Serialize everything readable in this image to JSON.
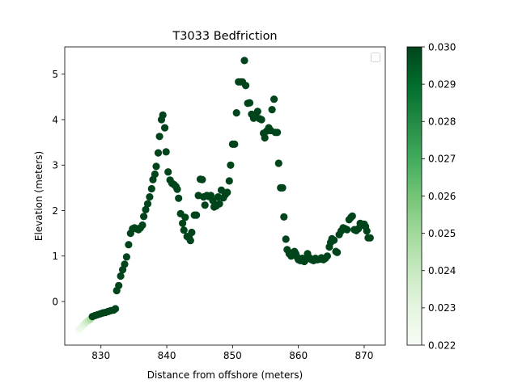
{
  "chart_data": {
    "type": "scatter",
    "title": "T3033 Bedfriction",
    "xlabel": "Distance from offshore (meters)",
    "ylabel": "Elevation (meters)",
    "xlim": [
      824.5,
      873.2
    ],
    "ylim": [
      -0.96,
      5.6
    ],
    "xticks": [
      830,
      840,
      850,
      860,
      870
    ],
    "yticks": [
      0,
      1,
      2,
      3,
      4,
      5
    ],
    "grid": false,
    "legend": "top-right, empty",
    "colormap": "Greens",
    "colorbar": {
      "min": 0.022,
      "max": 0.03,
      "ticks": [
        "0.022",
        "0.023",
        "0.024",
        "0.025",
        "0.026",
        "0.027",
        "0.028",
        "0.029",
        "0.030"
      ]
    },
    "points": [
      [
        826.6,
        -0.62,
        0.0222
      ],
      [
        826.9,
        -0.58,
        0.0225
      ],
      [
        827.2,
        -0.53,
        0.0228
      ],
      [
        827.5,
        -0.49,
        0.0232
      ],
      [
        827.8,
        -0.45,
        0.0236
      ],
      [
        828.1,
        -0.42,
        0.024
      ],
      [
        828.4,
        -0.39,
        0.0247
      ],
      [
        828.7,
        -0.33,
        0.03
      ],
      [
        829.1,
        -0.31,
        0.03
      ],
      [
        829.5,
        -0.29,
        0.03
      ],
      [
        829.9,
        -0.27,
        0.03
      ],
      [
        830.3,
        -0.25,
        0.03
      ],
      [
        830.7,
        -0.24,
        0.03
      ],
      [
        831.1,
        -0.22,
        0.03
      ],
      [
        831.5,
        -0.2,
        0.03
      ],
      [
        831.9,
        -0.19,
        0.03
      ],
      [
        832.2,
        -0.16,
        0.03
      ],
      [
        832.4,
        0.24,
        0.03
      ],
      [
        832.7,
        0.35,
        0.03
      ],
      [
        833.0,
        0.56,
        0.03
      ],
      [
        833.3,
        0.7,
        0.03
      ],
      [
        833.6,
        0.82,
        0.03
      ],
      [
        833.9,
        0.98,
        0.03
      ],
      [
        834.2,
        1.25,
        0.03
      ],
      [
        834.5,
        1.5,
        0.03
      ],
      [
        834.8,
        1.6,
        0.03
      ],
      [
        835.1,
        1.62,
        0.03
      ],
      [
        835.4,
        1.6,
        0.03
      ],
      [
        835.7,
        1.58,
        0.03
      ],
      [
        836.0,
        1.62,
        0.03
      ],
      [
        836.3,
        1.68,
        0.03
      ],
      [
        836.5,
        1.87,
        0.03
      ],
      [
        836.8,
        2.02,
        0.03
      ],
      [
        837.1,
        2.15,
        0.03
      ],
      [
        837.4,
        2.3,
        0.03
      ],
      [
        837.7,
        2.48,
        0.03
      ],
      [
        837.9,
        2.68,
        0.03
      ],
      [
        838.2,
        2.8,
        0.03
      ],
      [
        838.4,
        2.97,
        0.03
      ],
      [
        838.7,
        3.27,
        0.03
      ],
      [
        838.9,
        3.63,
        0.03
      ],
      [
        839.2,
        4.0,
        0.03
      ],
      [
        839.4,
        4.1,
        0.03
      ],
      [
        839.7,
        3.82,
        0.03
      ],
      [
        839.9,
        3.29,
        0.03
      ],
      [
        840.2,
        2.85,
        0.03
      ],
      [
        840.5,
        2.67,
        0.03
      ],
      [
        840.8,
        2.6,
        0.03
      ],
      [
        841.1,
        2.57,
        0.03
      ],
      [
        841.4,
        2.53,
        0.03
      ],
      [
        841.6,
        2.47,
        0.03
      ],
      [
        841.8,
        2.27,
        0.03
      ],
      [
        842.1,
        1.93,
        0.03
      ],
      [
        842.4,
        1.72,
        0.03
      ],
      [
        842.6,
        1.57,
        0.03
      ],
      [
        842.8,
        1.85,
        0.03
      ],
      [
        843.1,
        1.43,
        0.03
      ],
      [
        843.4,
        1.4,
        0.03
      ],
      [
        843.6,
        1.34,
        0.03
      ],
      [
        843.8,
        1.52,
        0.03
      ],
      [
        844.2,
        1.9,
        0.03
      ],
      [
        844.5,
        1.9,
        0.03
      ],
      [
        844.8,
        2.33,
        0.03
      ],
      [
        845.1,
        2.69,
        0.03
      ],
      [
        845.4,
        2.68,
        0.03
      ],
      [
        845.6,
        2.3,
        0.03
      ],
      [
        845.8,
        2.12,
        0.03
      ],
      [
        846.1,
        2.33,
        0.03
      ],
      [
        846.4,
        2.31,
        0.03
      ],
      [
        846.7,
        2.33,
        0.03
      ],
      [
        847.0,
        2.22,
        0.03
      ],
      [
        847.2,
        2.08,
        0.03
      ],
      [
        847.5,
        2.1,
        0.03
      ],
      [
        847.8,
        2.3,
        0.03
      ],
      [
        848.0,
        2.15,
        0.03
      ],
      [
        848.3,
        2.45,
        0.03
      ],
      [
        848.6,
        2.28,
        0.03
      ],
      [
        848.9,
        2.35,
        0.03
      ],
      [
        849.2,
        2.4,
        0.03
      ],
      [
        849.5,
        2.65,
        0.03
      ],
      [
        849.7,
        3.0,
        0.03
      ],
      [
        850.0,
        3.46,
        0.03
      ],
      [
        850.3,
        3.46,
        0.03
      ],
      [
        850.6,
        4.15,
        0.03
      ],
      [
        850.9,
        4.83,
        0.03
      ],
      [
        851.2,
        4.83,
        0.03
      ],
      [
        851.5,
        4.83,
        0.03
      ],
      [
        851.8,
        5.3,
        0.03
      ],
      [
        852.0,
        4.75,
        0.03
      ],
      [
        852.3,
        4.36,
        0.03
      ],
      [
        852.6,
        4.37,
        0.03
      ],
      [
        852.9,
        4.12,
        0.03
      ],
      [
        853.2,
        4.03,
        0.03
      ],
      [
        853.5,
        4.08,
        0.03
      ],
      [
        853.8,
        4.18,
        0.03
      ],
      [
        854.1,
        4.02,
        0.03
      ],
      [
        854.4,
        4.0,
        0.03
      ],
      [
        854.7,
        3.7,
        0.03
      ],
      [
        854.9,
        3.6,
        0.03
      ],
      [
        855.2,
        3.75,
        0.03
      ],
      [
        855.5,
        3.82,
        0.03
      ],
      [
        855.8,
        3.76,
        0.03
      ],
      [
        856.0,
        4.22,
        0.03
      ],
      [
        856.3,
        4.45,
        0.03
      ],
      [
        856.5,
        3.72,
        0.03
      ],
      [
        856.8,
        3.72,
        0.03
      ],
      [
        857.0,
        3.04,
        0.03
      ],
      [
        857.3,
        2.5,
        0.03
      ],
      [
        857.6,
        2.5,
        0.03
      ],
      [
        857.8,
        1.86,
        0.03
      ],
      [
        858.1,
        1.37,
        0.03
      ],
      [
        858.3,
        1.14,
        0.03
      ],
      [
        858.6,
        1.05,
        0.03
      ],
      [
        858.9,
        1.0,
        0.03
      ],
      [
        859.1,
        1.07,
        0.03
      ],
      [
        859.4,
        1.1,
        0.03
      ],
      [
        859.6,
        1.05,
        0.03
      ],
      [
        859.8,
        0.98,
        0.03
      ],
      [
        860.0,
        0.92,
        0.03
      ],
      [
        860.3,
        0.9,
        0.03
      ],
      [
        860.6,
        0.95,
        0.03
      ],
      [
        860.9,
        0.88,
        0.03
      ],
      [
        861.1,
        0.92,
        0.03
      ],
      [
        861.4,
        1.05,
        0.03
      ],
      [
        861.7,
        0.96,
        0.03
      ],
      [
        862.0,
        0.92,
        0.03
      ],
      [
        862.3,
        0.9,
        0.03
      ],
      [
        862.6,
        0.95,
        0.03
      ],
      [
        862.9,
        0.92,
        0.03
      ],
      [
        863.2,
        0.93,
        0.03
      ],
      [
        863.5,
        0.96,
        0.03
      ],
      [
        863.8,
        0.92,
        0.03
      ],
      [
        864.1,
        0.95,
        0.03
      ],
      [
        864.4,
        1.0,
        0.03
      ],
      [
        864.7,
        1.2,
        0.03
      ],
      [
        864.9,
        1.3,
        0.03
      ],
      [
        865.1,
        1.38,
        0.03
      ],
      [
        865.4,
        1.35,
        0.03
      ],
      [
        865.7,
        1.1,
        0.03
      ],
      [
        865.9,
        1.08,
        0.03
      ],
      [
        866.2,
        1.47,
        0.03
      ],
      [
        866.5,
        1.55,
        0.03
      ],
      [
        866.8,
        1.62,
        0.03
      ],
      [
        867.1,
        1.6,
        0.03
      ],
      [
        867.4,
        1.58,
        0.03
      ],
      [
        867.7,
        1.8,
        0.03
      ],
      [
        868.0,
        1.85,
        0.03
      ],
      [
        868.2,
        1.88,
        0.03
      ],
      [
        868.5,
        1.58,
        0.03
      ],
      [
        868.8,
        1.56,
        0.03
      ],
      [
        869.1,
        1.6,
        0.03
      ],
      [
        869.4,
        1.72,
        0.03
      ],
      [
        869.7,
        1.68,
        0.03
      ],
      [
        870.0,
        1.7,
        0.03
      ],
      [
        870.2,
        1.65,
        0.03
      ],
      [
        870.4,
        1.55,
        0.03
      ],
      [
        870.6,
        1.4,
        0.03
      ],
      [
        870.9,
        1.4,
        0.03
      ]
    ]
  }
}
